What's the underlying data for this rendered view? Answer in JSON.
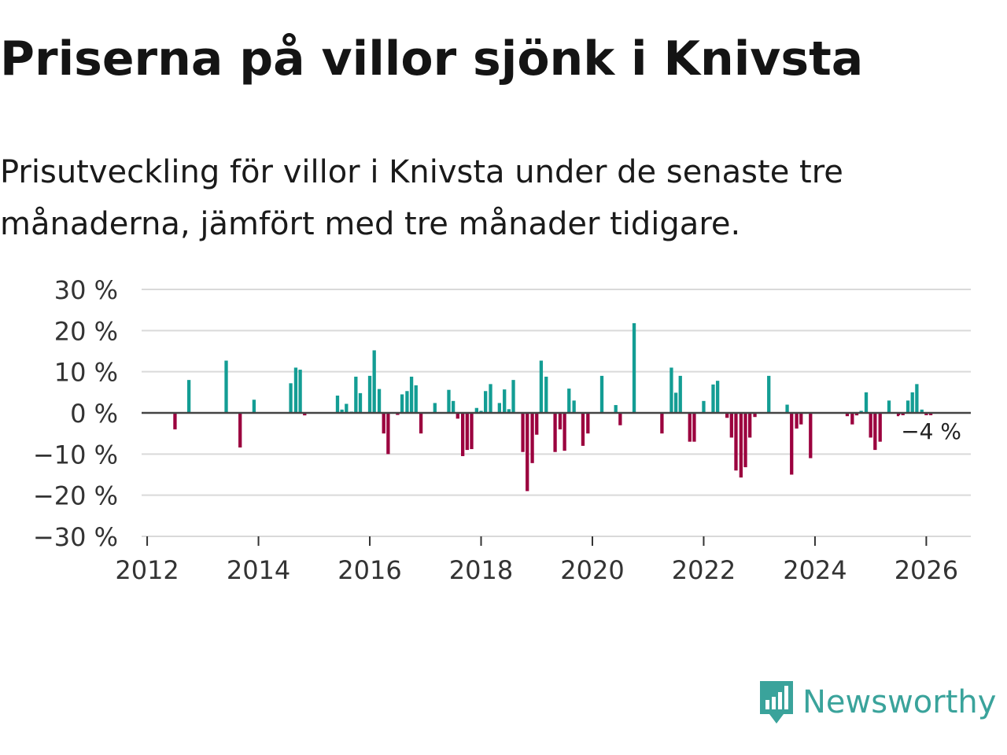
{
  "title": "Priserna på villor sjönk i Knivsta",
  "subtitle": "Prisutveckling för villor i Knivsta under de senaste tre månaderna, jämfört med tre månader tidigare.",
  "brand": {
    "name": "Newsworthy",
    "color": "#3aa39b"
  },
  "colors": {
    "positive": "#139d94",
    "negative": "#9b003e",
    "grid": "#d9d9d9",
    "zero": "#444444"
  },
  "chart_data": {
    "type": "bar",
    "title": "Priserna på villor sjönk i Knivsta",
    "xlabel": "",
    "ylabel": "",
    "ylim": [
      -30,
      30
    ],
    "xlim": [
      2011.9,
      2026.8
    ],
    "yticks": [
      30,
      20,
      10,
      0,
      -10,
      -20,
      -30
    ],
    "ytick_labels": [
      "30 %",
      "20 %",
      "10 %",
      "0 %",
      "−10 %",
      "−20 %",
      "−30 %"
    ],
    "xticks": [
      2012,
      2014,
      2016,
      2018,
      2020,
      2022,
      2024,
      2026
    ],
    "xtick_labels": [
      "2012",
      "2014",
      "2016",
      "2018",
      "2020",
      "2022",
      "2024",
      "2026"
    ],
    "annotation": {
      "text": "−4 %",
      "value": -4
    },
    "bars": [
      {
        "x": 2012.5,
        "y": -4
      },
      {
        "x": 2012.75,
        "y": 8
      },
      {
        "x": 2013.42,
        "y": 12.7
      },
      {
        "x": 2013.67,
        "y": -8.4
      },
      {
        "x": 2013.92,
        "y": 3.2
      },
      {
        "x": 2014.58,
        "y": 7.2
      },
      {
        "x": 2014.67,
        "y": 11
      },
      {
        "x": 2014.75,
        "y": 10.5
      },
      {
        "x": 2014.83,
        "y": -0.6
      },
      {
        "x": 2015.42,
        "y": 4.2
      },
      {
        "x": 2015.5,
        "y": 0.8
      },
      {
        "x": 2015.58,
        "y": 2.2
      },
      {
        "x": 2015.67,
        "y": 0.3
      },
      {
        "x": 2015.75,
        "y": 8.8
      },
      {
        "x": 2015.83,
        "y": 4.8
      },
      {
        "x": 2016.0,
        "y": 9
      },
      {
        "x": 2016.08,
        "y": 15.2
      },
      {
        "x": 2016.17,
        "y": 5.8
      },
      {
        "x": 2016.25,
        "y": -5
      },
      {
        "x": 2016.33,
        "y": -10
      },
      {
        "x": 2016.5,
        "y": -0.5
      },
      {
        "x": 2016.58,
        "y": 4.5
      },
      {
        "x": 2016.67,
        "y": 5.3
      },
      {
        "x": 2016.75,
        "y": 8.8
      },
      {
        "x": 2016.83,
        "y": 6.7
      },
      {
        "x": 2016.92,
        "y": -5
      },
      {
        "x": 2017.17,
        "y": 2.4
      },
      {
        "x": 2017.42,
        "y": 5.6
      },
      {
        "x": 2017.5,
        "y": 2.9
      },
      {
        "x": 2017.58,
        "y": -1.4
      },
      {
        "x": 2017.67,
        "y": -10.5
      },
      {
        "x": 2017.75,
        "y": -9
      },
      {
        "x": 2017.83,
        "y": -8.8
      },
      {
        "x": 2017.92,
        "y": 1.2
      },
      {
        "x": 2018.0,
        "y": 0.5
      },
      {
        "x": 2018.08,
        "y": 5.3
      },
      {
        "x": 2018.17,
        "y": 7
      },
      {
        "x": 2018.33,
        "y": 2.4
      },
      {
        "x": 2018.42,
        "y": 5.7
      },
      {
        "x": 2018.5,
        "y": 0.9
      },
      {
        "x": 2018.58,
        "y": 8
      },
      {
        "x": 2018.75,
        "y": -9.5
      },
      {
        "x": 2018.83,
        "y": -19
      },
      {
        "x": 2018.92,
        "y": -12.2
      },
      {
        "x": 2019.0,
        "y": -5.3
      },
      {
        "x": 2019.08,
        "y": 12.7
      },
      {
        "x": 2019.17,
        "y": 8.8
      },
      {
        "x": 2019.33,
        "y": -9.5
      },
      {
        "x": 2019.42,
        "y": -4
      },
      {
        "x": 2019.5,
        "y": -9.2
      },
      {
        "x": 2019.58,
        "y": 5.9
      },
      {
        "x": 2019.67,
        "y": 3
      },
      {
        "x": 2019.83,
        "y": -8
      },
      {
        "x": 2019.92,
        "y": -5
      },
      {
        "x": 2020.17,
        "y": 9
      },
      {
        "x": 2020.42,
        "y": 1.9
      },
      {
        "x": 2020.5,
        "y": -3
      },
      {
        "x": 2020.75,
        "y": 21.8
      },
      {
        "x": 2021.25,
        "y": -5
      },
      {
        "x": 2021.42,
        "y": 11
      },
      {
        "x": 2021.5,
        "y": 4.9
      },
      {
        "x": 2021.58,
        "y": 9
      },
      {
        "x": 2021.75,
        "y": -7
      },
      {
        "x": 2021.83,
        "y": -7
      },
      {
        "x": 2022.0,
        "y": 2.9
      },
      {
        "x": 2022.17,
        "y": 6.9
      },
      {
        "x": 2022.25,
        "y": 7.8
      },
      {
        "x": 2022.42,
        "y": -1.2
      },
      {
        "x": 2022.5,
        "y": -6
      },
      {
        "x": 2022.58,
        "y": -14
      },
      {
        "x": 2022.67,
        "y": -15.7
      },
      {
        "x": 2022.75,
        "y": -13.2
      },
      {
        "x": 2022.83,
        "y": -6
      },
      {
        "x": 2022.92,
        "y": -1
      },
      {
        "x": 2023.17,
        "y": 9
      },
      {
        "x": 2023.5,
        "y": 2
      },
      {
        "x": 2023.58,
        "y": -15
      },
      {
        "x": 2023.67,
        "y": -3.8
      },
      {
        "x": 2023.75,
        "y": -2.8
      },
      {
        "x": 2023.92,
        "y": -11
      },
      {
        "x": 2024.58,
        "y": -0.8
      },
      {
        "x": 2024.67,
        "y": -2.8
      },
      {
        "x": 2024.75,
        "y": -0.6
      },
      {
        "x": 2024.83,
        "y": 0.5
      },
      {
        "x": 2024.92,
        "y": 5
      },
      {
        "x": 2025.0,
        "y": -6
      },
      {
        "x": 2025.08,
        "y": -9
      },
      {
        "x": 2025.17,
        "y": -7
      },
      {
        "x": 2025.33,
        "y": 3
      },
      {
        "x": 2025.5,
        "y": -0.8
      },
      {
        "x": 2025.58,
        "y": -3.8
      },
      {
        "x": 2025.67,
        "y": 3
      },
      {
        "x": 2025.75,
        "y": 5
      },
      {
        "x": 2025.83,
        "y": 7
      },
      {
        "x": 2025.92,
        "y": 0.8
      },
      {
        "x": 2026.0,
        "y": -2
      },
      {
        "x": 2026.08,
        "y": -4
      }
    ]
  }
}
